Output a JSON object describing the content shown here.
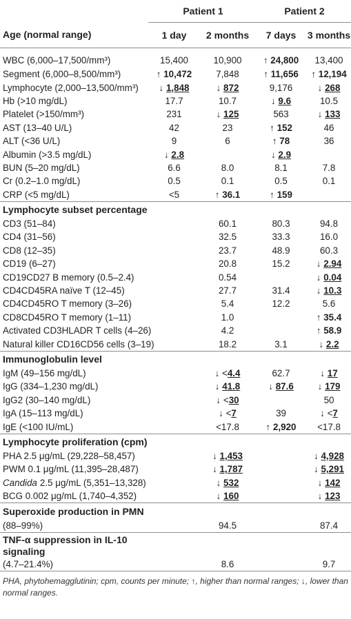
{
  "header": {
    "group_labels": [
      "Patient 1",
      "Patient 2"
    ],
    "column_labels": [
      "Age (normal range)",
      "1 day",
      "2 months",
      "7 days",
      "3 months"
    ]
  },
  "sections": [
    {
      "rows": [
        {
          "label": "WBC (6,000–17,500/mm³)",
          "cells": [
            "15,400",
            "10,900",
            {
              "arrow": "↑",
              "value": "24,800"
            },
            "13,400"
          ]
        },
        {
          "label": "Segment (6,000–8,500/mm³)",
          "cells": [
            {
              "arrow": "↑",
              "value": "10,472"
            },
            "7,848",
            {
              "arrow": "↑",
              "value": "11,656"
            },
            {
              "arrow": "↑",
              "value": "12,194"
            }
          ]
        },
        {
          "label": "Lymphocyte (2,000–13,500/mm³)",
          "cells": [
            {
              "arrow": "↓",
              "value": "1,848",
              "underline": true
            },
            {
              "arrow": "↓",
              "value": "872",
              "underline": true
            },
            "9,176",
            {
              "arrow": "↓",
              "value": "268",
              "underline": true
            }
          ]
        },
        {
          "label": "Hb (>10 mg/dL)",
          "cells": [
            "17.7",
            "10.7",
            {
              "arrow": "↓",
              "value": "9.6",
              "underline": true
            },
            "10.5"
          ]
        },
        {
          "label": "Platelet (>150/mm³)",
          "cells": [
            "231",
            {
              "arrow": "↓",
              "value": "125",
              "underline": true
            },
            "563",
            {
              "arrow": "↓",
              "value": "133",
              "underline": true
            }
          ]
        },
        {
          "label": "AST (13–40 U/L)",
          "cells": [
            "42",
            "23",
            {
              "arrow": "↑",
              "value": "152"
            },
            "46"
          ]
        },
        {
          "label": "ALT (<36 U/L)",
          "cells": [
            "9",
            "6",
            {
              "arrow": "↑",
              "value": "78"
            },
            "36"
          ]
        },
        {
          "label": "Albumin (>3.5 mg/dL)",
          "cells": [
            {
              "arrow": "↓",
              "value": "2.8",
              "underline": true
            },
            null,
            {
              "arrow": "↓",
              "value": "2.9",
              "underline": true
            },
            null
          ]
        },
        {
          "label": "BUN (5–20 mg/dL)",
          "cells": [
            "6.6",
            "8.0",
            "8.1",
            "7.8"
          ]
        },
        {
          "label": "Cr (0.2–1.0 mg/dL)",
          "cells": [
            "0.5",
            "0.1",
            "0.5",
            "0.1"
          ]
        },
        {
          "label": "CRP (<5 mg/dL)",
          "cells": [
            "<5",
            {
              "arrow": "↑",
              "value": "36.1"
            },
            {
              "arrow": "↑",
              "value": "159"
            },
            null
          ]
        }
      ]
    },
    {
      "title": "Lymphocyte subset percentage",
      "rows": [
        {
          "label": "CD3 (51–84)",
          "cells": [
            null,
            "60.1",
            "80.3",
            "94.8"
          ]
        },
        {
          "label": "CD4 (31–56)",
          "cells": [
            null,
            "32.5",
            "33.3",
            "16.0"
          ]
        },
        {
          "label": "CD8 (12–35)",
          "cells": [
            null,
            "23.7",
            "48.9",
            "60.3"
          ]
        },
        {
          "label": "CD19 (6–27)",
          "cells": [
            null,
            "20.8",
            "15.2",
            {
              "arrow": "↓",
              "value": "2.94",
              "underline": true
            }
          ]
        },
        {
          "label": "CD19CD27 B memory (0.5–2.4)",
          "cells": [
            null,
            "0.54",
            null,
            {
              "arrow": "↓",
              "value": "0.04",
              "underline": true
            }
          ]
        },
        {
          "label": "CD4CD45RA naïve T (12–45)",
          "cells": [
            null,
            "27.7",
            "31.4",
            {
              "arrow": "↓",
              "value": "10.3",
              "underline": true
            }
          ]
        },
        {
          "label": "CD4CD45RO T memory (3–26)",
          "cells": [
            null,
            "5.4",
            "12.2",
            "5.6"
          ]
        },
        {
          "label": "CD8CD45RO T memory (1–11)",
          "cells": [
            null,
            "1.0",
            null,
            {
              "arrow": "↑",
              "value": "35.4"
            }
          ]
        },
        {
          "label": "Activated CD3HLADR T cells (4–26)",
          "cells": [
            null,
            "4.2",
            null,
            {
              "arrow": "↑",
              "value": "58.9"
            }
          ]
        },
        {
          "label": "Natural killer CD16CD56 cells (3–19)",
          "cells": [
            null,
            "18.2",
            "3.1",
            {
              "arrow": "↓",
              "value": "2.2",
              "underline": true
            }
          ]
        }
      ]
    },
    {
      "title": "Immunoglobulin level",
      "rows": [
        {
          "label": "IgM (49–156 mg/dL)",
          "cells": [
            null,
            {
              "arrow": "↓",
              "prefix": "<",
              "value": "4.4",
              "underline": true
            },
            "62.7",
            {
              "arrow": "↓",
              "value": "17",
              "underline": true
            }
          ]
        },
        {
          "label": "IgG (334–1,230 mg/dL)",
          "cells": [
            null,
            {
              "arrow": "↓",
              "value": "41.8",
              "underline": true
            },
            {
              "arrow": "↓",
              "value": "87.6",
              "underline": true
            },
            {
              "arrow": "↓",
              "value": "179",
              "underline": true
            }
          ]
        },
        {
          "label": "IgG2 (30–140 mg/dL)",
          "cells": [
            null,
            {
              "arrow": "↓",
              "prefix": "<",
              "value": "30",
              "underline": true
            },
            null,
            "50"
          ]
        },
        {
          "label": "IgA (15–113 mg/dL)",
          "cells": [
            null,
            {
              "arrow": "↓",
              "prefix": "<",
              "value": "7",
              "underline": true
            },
            "39",
            {
              "arrow": "↓",
              "prefix": "<",
              "value": "7",
              "underline": true
            }
          ]
        },
        {
          "label": "IgE (<100 IU/mL)",
          "cells": [
            null,
            "<17.8",
            {
              "arrow": "↑",
              "value": "2,920"
            },
            "<17.8"
          ]
        }
      ]
    },
    {
      "title": "Lymphocyte proliferation (cpm)",
      "rows": [
        {
          "label": "PHA 2.5 μg/mL (29,228–58,457)",
          "cells": [
            null,
            {
              "arrow": "↓",
              "value": "1,453",
              "underline": true
            },
            null,
            {
              "arrow": "↓",
              "value": "4,928",
              "underline": true
            }
          ]
        },
        {
          "label": "PWM 0.1 μg/mL (11,395–28,487)",
          "cells": [
            null,
            {
              "arrow": "↓",
              "value": "1,787",
              "underline": true
            },
            null,
            {
              "arrow": "↓",
              "value": "5,291",
              "underline": true
            }
          ]
        },
        {
          "label": {
            "italic": "Candida",
            "text": "2.5 μg/mL (5,351–13,328)"
          },
          "cells": [
            null,
            {
              "arrow": "↓",
              "value": "532",
              "underline": true
            },
            null,
            {
              "arrow": "↓",
              "value": "142",
              "underline": true
            }
          ]
        },
        {
          "label": "BCG 0.002 μg/mL (1,740–4,352)",
          "cells": [
            null,
            {
              "arrow": "↓",
              "value": "160",
              "underline": true
            },
            null,
            {
              "arrow": "↓",
              "value": "123",
              "underline": true
            }
          ]
        }
      ]
    },
    {
      "title": "Superoxide production in PMN",
      "rows": [
        {
          "label": "(88–99%)",
          "cells": [
            null,
            "94.5",
            null,
            "87.4"
          ]
        }
      ]
    },
    {
      "title": "TNF-α suppression in IL-10 signaling",
      "rows": [
        {
          "label": "(4.7–21.4%)",
          "cells": [
            null,
            "8.6",
            null,
            "9.7"
          ]
        }
      ]
    }
  ],
  "footnote": "PHA, phytohemagglutinin; cpm, counts per minute; ↑, higher than normal ranges; ↓, lower than normal ranges."
}
